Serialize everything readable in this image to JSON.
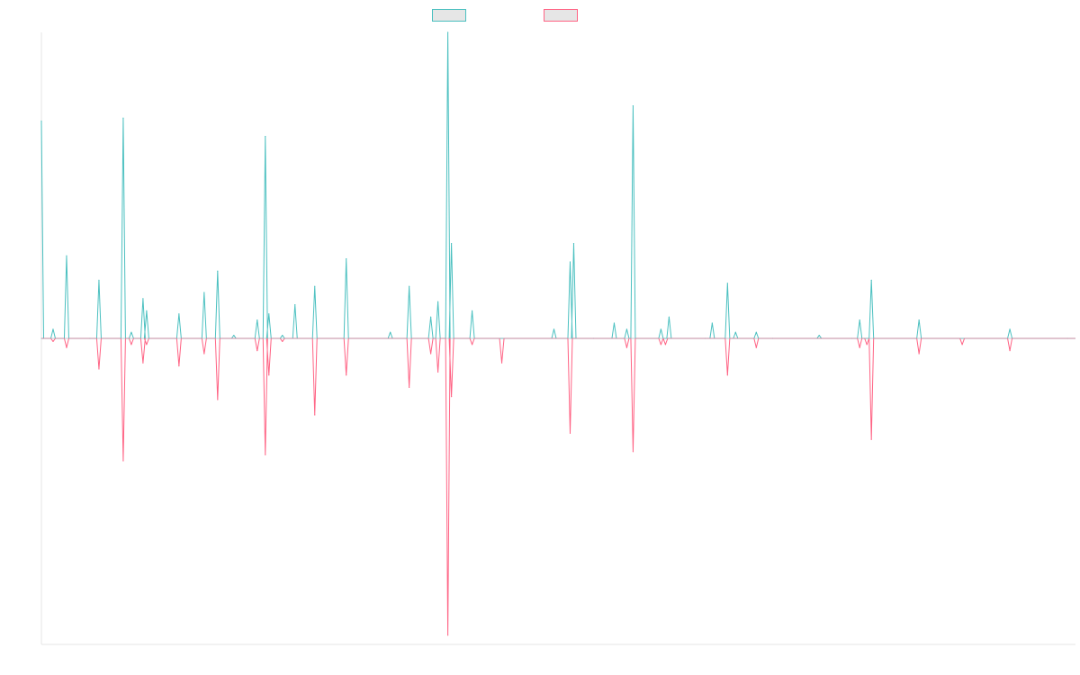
{
  "colors": {
    "series_a": "#4bc0c0",
    "series_b": "#ff6384",
    "legend_fill": "#e6e6e6",
    "axis": "#e5e5e5",
    "baseline": "#9aa5b1"
  },
  "chart_data": {
    "type": "line",
    "title": "",
    "xlabel": "",
    "ylabel": "",
    "legend_position": "top-center",
    "grid": false,
    "x_range": [
      0,
      1150
    ],
    "ylim": [
      -1,
      1
    ],
    "series": [
      {
        "label": "",
        "color": "#4bc0c0",
        "points": [
          [
            0,
            0.71
          ],
          [
            2,
            0.0
          ],
          [
            13,
            0.03
          ],
          [
            28,
            0.27
          ],
          [
            54,
            0.0
          ],
          [
            64,
            0.19
          ],
          [
            91,
            0.72
          ],
          [
            100,
            0.02
          ],
          [
            113,
            0.13
          ],
          [
            117,
            0.09
          ],
          [
            153,
            0.08
          ],
          [
            181,
            0.15
          ],
          [
            196,
            0.22
          ],
          [
            214,
            0.01
          ],
          [
            240,
            0.06
          ],
          [
            249,
            0.66
          ],
          [
            253,
            0.08
          ],
          [
            268,
            0.01
          ],
          [
            282,
            0.11
          ],
          [
            304,
            0.17
          ],
          [
            339,
            0.26
          ],
          [
            388,
            0.02
          ],
          [
            409,
            0.17
          ],
          [
            433,
            0.07
          ],
          [
            441,
            0.12
          ],
          [
            452,
            1.0
          ],
          [
            456,
            0.31
          ],
          [
            479,
            0.09
          ],
          [
            570,
            0.03
          ],
          [
            588,
            0.25
          ],
          [
            592,
            0.31
          ],
          [
            614,
            0.0
          ],
          [
            637,
            0.05
          ],
          [
            651,
            0.03
          ],
          [
            658,
            0.76
          ],
          [
            689,
            0.03
          ],
          [
            698,
            0.07
          ],
          [
            738,
            0.0
          ],
          [
            746,
            0.05
          ],
          [
            763,
            0.18
          ],
          [
            772,
            0.02
          ],
          [
            795,
            0.02
          ],
          [
            813,
            0.0
          ],
          [
            865,
            0.01
          ],
          [
            901,
            0.0
          ],
          [
            910,
            0.06
          ],
          [
            923,
            0.19
          ],
          [
            976,
            0.06
          ],
          [
            1077,
            0.03
          ],
          [
            1141,
            0.0
          ]
        ]
      },
      {
        "label": "",
        "color": "#ff6384",
        "points": [
          [
            13,
            -0.01
          ],
          [
            28,
            -0.03
          ],
          [
            64,
            -0.1
          ],
          [
            91,
            -0.4
          ],
          [
            100,
            -0.02
          ],
          [
            113,
            -0.08
          ],
          [
            117,
            -0.02
          ],
          [
            153,
            -0.09
          ],
          [
            181,
            -0.05
          ],
          [
            196,
            -0.2
          ],
          [
            240,
            -0.04
          ],
          [
            249,
            -0.38
          ],
          [
            253,
            -0.12
          ],
          [
            268,
            -0.01
          ],
          [
            304,
            -0.25
          ],
          [
            339,
            -0.12
          ],
          [
            409,
            -0.16
          ],
          [
            433,
            -0.05
          ],
          [
            441,
            -0.11
          ],
          [
            452,
            -0.97
          ],
          [
            456,
            -0.19
          ],
          [
            479,
            -0.02
          ],
          [
            512,
            -0.08
          ],
          [
            588,
            -0.31
          ],
          [
            651,
            -0.03
          ],
          [
            658,
            -0.37
          ],
          [
            689,
            -0.02
          ],
          [
            694,
            -0.02
          ],
          [
            763,
            -0.12
          ],
          [
            795,
            -0.03
          ],
          [
            910,
            -0.03
          ],
          [
            918,
            -0.02
          ],
          [
            923,
            -0.33
          ],
          [
            976,
            -0.05
          ],
          [
            1024,
            -0.02
          ],
          [
            1077,
            -0.04
          ]
        ]
      }
    ]
  }
}
